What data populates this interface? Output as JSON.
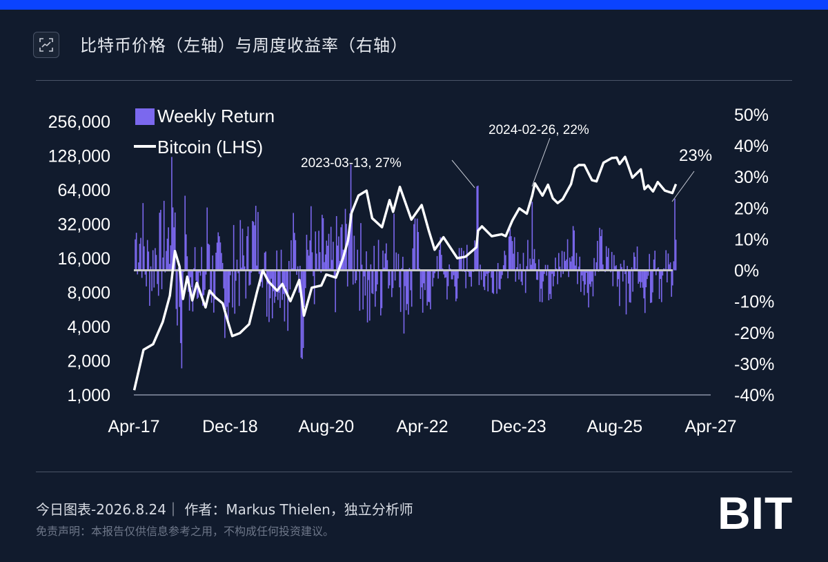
{
  "header": {
    "title": "比特币价格（左轴）与周度收益率（右轴）",
    "icon": "chart-expand-icon"
  },
  "footer": {
    "byline": "今日图表-2026.8.24｜ 作者：Markus Thielen，独立分析师",
    "disclaimer": "免责声明：本报告仅供信息参考之用，不构成任何投资建议。",
    "brand": "BIT"
  },
  "colors": {
    "background": "#111b2d",
    "accent_bar": "#0b43ff",
    "bars": "#7b68ee",
    "line": "#ffffff",
    "zero_line": "#c8c8c8"
  },
  "chart_data": {
    "type": "bar+line",
    "title": "",
    "left_axis": {
      "scale": "log2",
      "ticks": [
        1000,
        2000,
        4000,
        8000,
        16000,
        32000,
        64000,
        128000,
        256000
      ],
      "tick_labels": [
        "1,000",
        "2,000",
        "4,000",
        "8,000",
        "16,000",
        "32,000",
        "64,000",
        "128,000",
        "256,000"
      ],
      "range": [
        1000,
        256000
      ]
    },
    "right_axis": {
      "ticks": [
        -0.4,
        -0.3,
        -0.2,
        -0.1,
        0,
        0.1,
        0.2,
        0.3,
        0.4,
        0.5
      ],
      "tick_labels": [
        "-40%",
        "-30%",
        "-20%",
        "-10%",
        "0%",
        "10%",
        "20%",
        "30%",
        "40%",
        "50%"
      ],
      "range": [
        -0.4,
        0.5
      ]
    },
    "x_axis": {
      "ticks": [
        "2017-04-01",
        "2018-12-01",
        "2020-08-01",
        "2022-04-01",
        "2023-12-01",
        "2025-08-01",
        "2027-04-01"
      ],
      "tick_labels": [
        "Apr-17",
        "Dec-18",
        "Aug-20",
        "Apr-22",
        "Dec-23",
        "Aug-25",
        "Apr-27"
      ],
      "range": [
        "2017-04-01",
        "2027-04-01"
      ]
    },
    "legend": {
      "placement": "top-left",
      "items": [
        {
          "label": "Weekly Return",
          "type": "bar"
        },
        {
          "label": "Bitcoin (LHS)",
          "type": "line"
        }
      ]
    },
    "annotations": [
      {
        "label": "2023-03-13, 27%",
        "date": "2023-03-13",
        "value": 0.27
      },
      {
        "label": "2024-02-26, 22%",
        "date": "2024-02-26",
        "value": 0.22
      },
      {
        "label": "23%",
        "date": "2026-08-17",
        "value": 0.23
      }
    ],
    "series": [
      {
        "name": "Bitcoin (LHS)",
        "type": "line",
        "axis": "left",
        "points": [
          [
            "2017-04-03",
            1100
          ],
          [
            "2017-06-01",
            2500
          ],
          [
            "2017-08-01",
            2800
          ],
          [
            "2017-10-01",
            4400
          ],
          [
            "2017-11-15",
            7500
          ],
          [
            "2017-12-17",
            18500
          ],
          [
            "2018-01-15",
            13500
          ],
          [
            "2018-02-06",
            7000
          ],
          [
            "2018-03-05",
            11000
          ],
          [
            "2018-04-06",
            6800
          ],
          [
            "2018-05-05",
            9700
          ],
          [
            "2018-06-29",
            5900
          ],
          [
            "2018-07-24",
            8300
          ],
          [
            "2018-09-01",
            7200
          ],
          [
            "2018-10-15",
            6400
          ],
          [
            "2018-11-20",
            4300
          ],
          [
            "2018-12-15",
            3300
          ],
          [
            "2019-02-01",
            3500
          ],
          [
            "2019-04-01",
            4200
          ],
          [
            "2019-05-20",
            8000
          ],
          [
            "2019-06-26",
            12500
          ],
          [
            "2019-08-01",
            10000
          ],
          [
            "2019-09-25",
            8300
          ],
          [
            "2019-10-28",
            9500
          ],
          [
            "2019-12-18",
            6700
          ],
          [
            "2020-02-12",
            10300
          ],
          [
            "2020-03-13",
            5000
          ],
          [
            "2020-05-01",
            8800
          ],
          [
            "2020-07-01",
            9200
          ],
          [
            "2020-08-01",
            11500
          ],
          [
            "2020-10-01",
            10800
          ],
          [
            "2020-11-15",
            16000
          ],
          [
            "2020-12-17",
            23000
          ],
          [
            "2021-01-08",
            40000
          ],
          [
            "2021-02-21",
            57000
          ],
          [
            "2021-04-13",
            63000
          ],
          [
            "2021-05-19",
            36000
          ],
          [
            "2021-07-20",
            30000
          ],
          [
            "2021-09-06",
            52000
          ],
          [
            "2021-09-28",
            41000
          ],
          [
            "2021-11-10",
            68000
          ],
          [
            "2022-01-22",
            35000
          ],
          [
            "2022-03-28",
            47000
          ],
          [
            "2022-05-12",
            28000
          ],
          [
            "2022-06-18",
            19000
          ],
          [
            "2022-08-13",
            24500
          ],
          [
            "2022-11-09",
            16000
          ],
          [
            "2022-12-31",
            16500
          ],
          [
            "2023-03-10",
            20000
          ],
          [
            "2023-03-20",
            28000
          ],
          [
            "2023-04-14",
            30500
          ],
          [
            "2023-06-15",
            25000
          ],
          [
            "2023-08-17",
            26000
          ],
          [
            "2023-09-11",
            25000
          ],
          [
            "2023-10-24",
            34500
          ],
          [
            "2023-12-06",
            44000
          ],
          [
            "2024-01-23",
            39500
          ],
          [
            "2024-02-26",
            57000
          ],
          [
            "2024-03-14",
            73000
          ],
          [
            "2024-05-01",
            57000
          ],
          [
            "2024-06-05",
            71000
          ],
          [
            "2024-07-05",
            54000
          ],
          [
            "2024-08-05",
            49000
          ],
          [
            "2024-09-06",
            53000
          ],
          [
            "2024-10-29",
            72000
          ],
          [
            "2024-11-22",
            99000
          ],
          [
            "2024-12-17",
            106000
          ],
          [
            "2025-01-21",
            106000
          ],
          [
            "2025-03-10",
            78000
          ],
          [
            "2025-04-08",
            76000
          ],
          [
            "2025-05-22",
            111000
          ],
          [
            "2025-07-14",
            122000
          ],
          [
            "2025-08-14",
            123000
          ],
          [
            "2025-09-01",
            108000
          ],
          [
            "2025-10-06",
            125000
          ],
          [
            "2025-11-21",
            82000
          ],
          [
            "2026-01-14",
            97000
          ],
          [
            "2026-02-06",
            65000
          ],
          [
            "2026-03-01",
            70000
          ],
          [
            "2026-04-01",
            62000
          ],
          [
            "2026-05-01",
            75000
          ],
          [
            "2026-06-15",
            63000
          ],
          [
            "2026-08-01",
            60000
          ],
          [
            "2026-08-24",
            72000
          ]
        ]
      },
      {
        "name": "Weekly Return",
        "type": "bar",
        "axis": "right",
        "generated": "weekly_bars"
      }
    ]
  }
}
